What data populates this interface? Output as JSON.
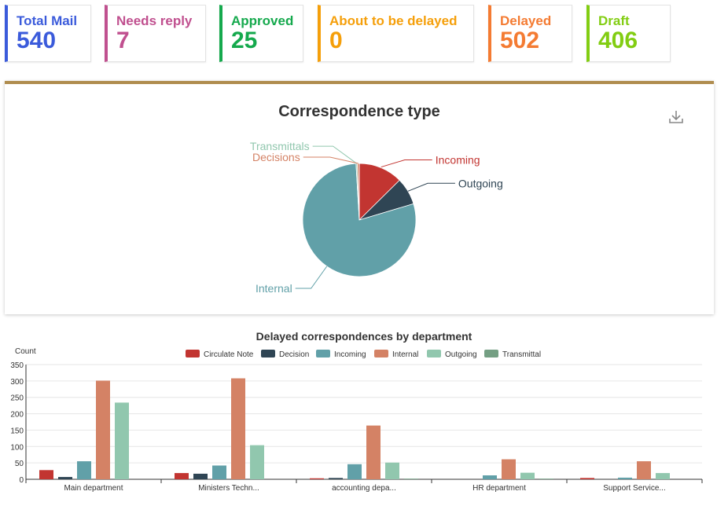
{
  "summary_cards": [
    {
      "label": "Total Mail",
      "value": "540",
      "color": "#3b5bdb"
    },
    {
      "label": "Needs reply",
      "value": "7",
      "color": "#c0508f"
    },
    {
      "label": "Approved",
      "value": "25",
      "color": "#15a94d"
    },
    {
      "label": "About to be delayed",
      "value": "0",
      "color": "#f59f0a"
    },
    {
      "label": "Delayed",
      "value": "502",
      "color": "#f47b32"
    },
    {
      "label": "Draft",
      "value": "406",
      "color": "#82cd12"
    }
  ],
  "panel": {
    "border_color": "#b08d4f",
    "download_icon": "download-icon"
  },
  "chart_data": [
    {
      "type": "pie",
      "title": "Correspondence type",
      "slices": [
        {
          "label": "Incoming",
          "value": 68,
          "color": "#c23531"
        },
        {
          "label": "Outgoing",
          "value": 42,
          "color": "#2f4554"
        },
        {
          "label": "Internal",
          "value": 425,
          "color": "#61a0a8"
        },
        {
          "label": "Transmittals",
          "value": 2,
          "color": "#91c7ae"
        },
        {
          "label": "Decisions",
          "value": 3,
          "color": "#d48265"
        }
      ]
    },
    {
      "type": "bar",
      "title": "Delayed correspondences by department",
      "ylabel": "Count",
      "ylim": [
        0,
        350
      ],
      "yticks": [
        0,
        50,
        100,
        150,
        200,
        250,
        300,
        350
      ],
      "categories": [
        "Main department",
        "Ministers Techn...",
        "accounting depa...",
        "HR department",
        "Support Service..."
      ],
      "series": [
        {
          "name": "Circulate Note",
          "color": "#c23531",
          "values": [
            28,
            19,
            3,
            0,
            4
          ]
        },
        {
          "name": "Decision",
          "color": "#2f4554",
          "values": [
            7,
            17,
            4,
            0,
            0
          ]
        },
        {
          "name": "Incoming",
          "color": "#61a0a8",
          "values": [
            55,
            42,
            46,
            12,
            5
          ]
        },
        {
          "name": "Internal",
          "color": "#d48265",
          "values": [
            301,
            308,
            164,
            61,
            55
          ]
        },
        {
          "name": "Outgoing",
          "color": "#91c7ae",
          "values": [
            234,
            104,
            51,
            20,
            19
          ]
        },
        {
          "name": "Transmittal",
          "color": "#749f83",
          "values": [
            0,
            0,
            2,
            2,
            0
          ]
        }
      ]
    }
  ]
}
